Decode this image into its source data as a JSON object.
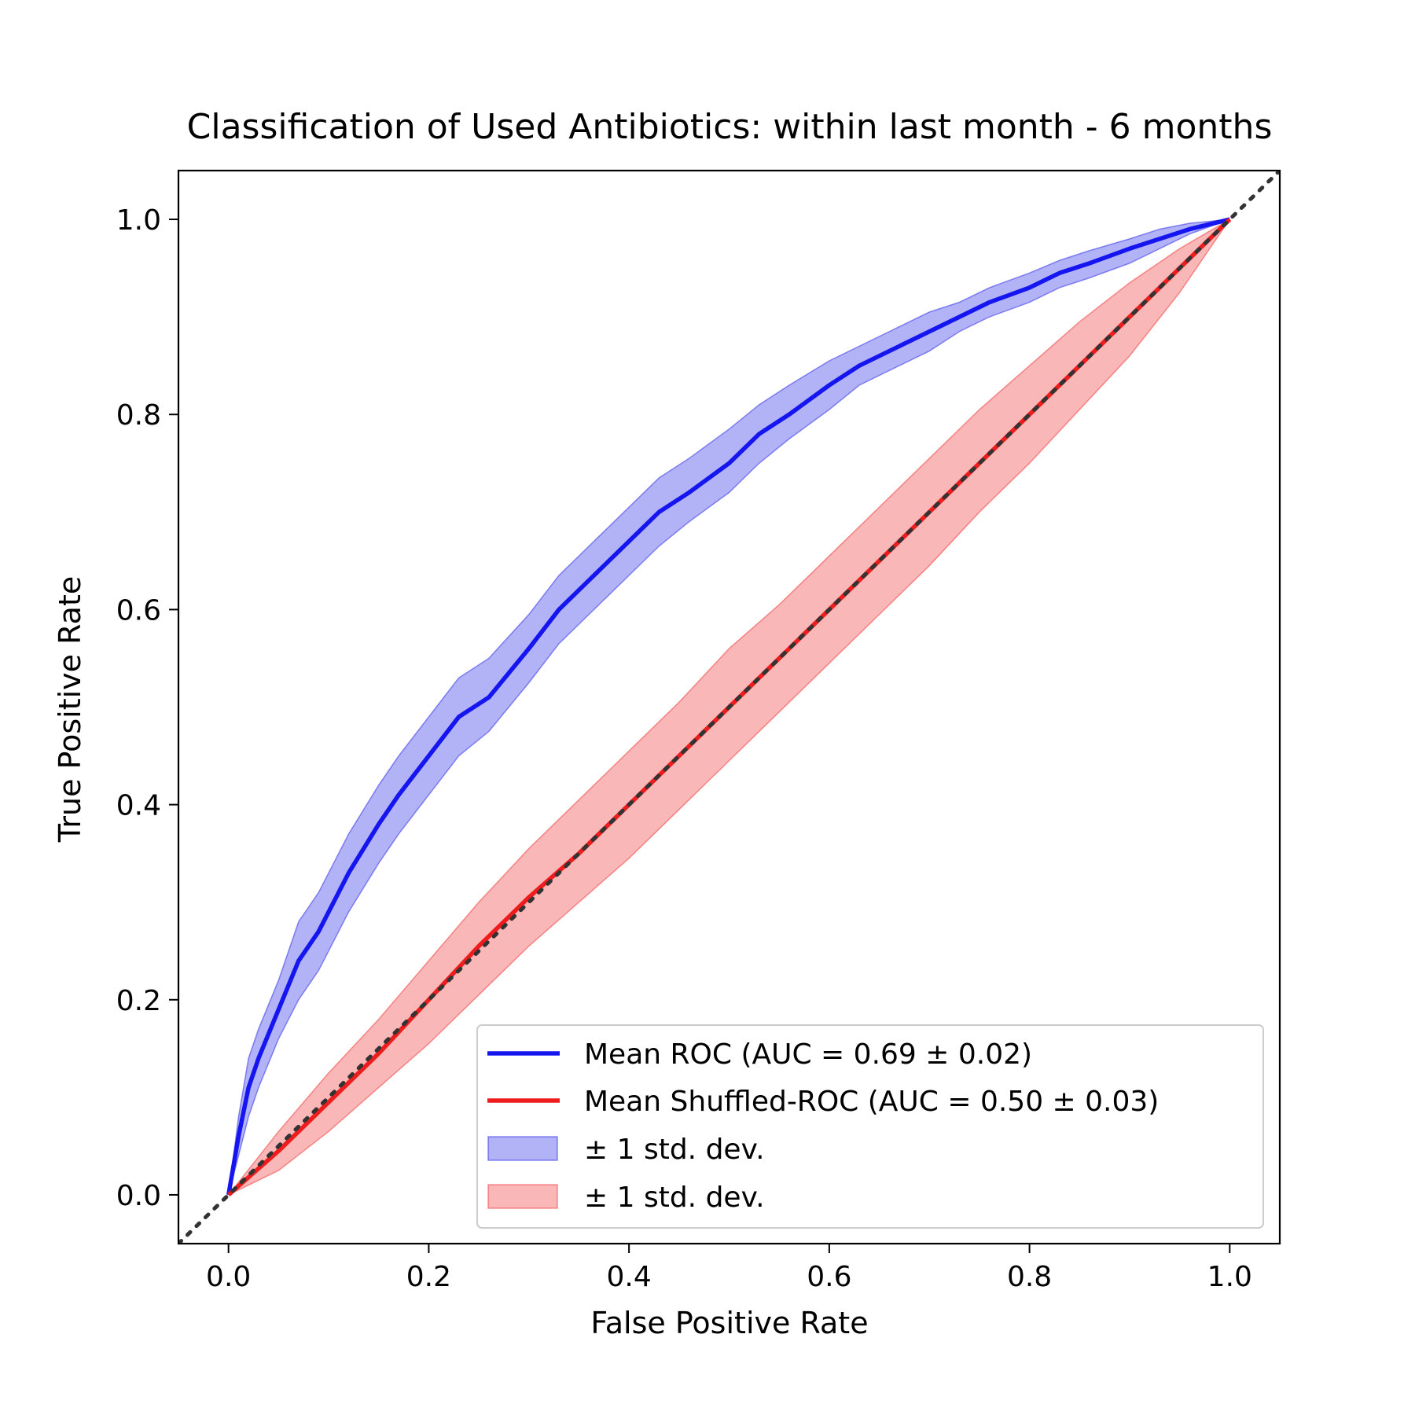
{
  "chart_data": {
    "type": "line",
    "title": "Classification of Used Antibiotics: within last month - 6 months",
    "xlabel": "False Positive Rate",
    "ylabel": "True Positive Rate",
    "xlim": [
      -0.05,
      1.05
    ],
    "ylim": [
      -0.05,
      1.05
    ],
    "xticks": [
      "0.0",
      "0.2",
      "0.4",
      "0.6",
      "0.8",
      "1.0"
    ],
    "yticks": [
      "0.0",
      "0.2",
      "0.4",
      "0.6",
      "0.8",
      "1.0"
    ],
    "grid": false,
    "legend_position": "lower-right",
    "diagonal": {
      "x": [
        -0.05,
        1.05
      ],
      "y": [
        -0.05,
        1.05
      ],
      "color": "#333333",
      "style": "dotted"
    },
    "series": [
      {
        "name": "Mean ROC (AUC = 0.69 ± 0.02)",
        "color": "#1515f0",
        "x": [
          0,
          0.01,
          0.02,
          0.03,
          0.05,
          0.07,
          0.09,
          0.12,
          0.15,
          0.17,
          0.2,
          0.23,
          0.26,
          0.3,
          0.33,
          0.36,
          0.4,
          0.43,
          0.46,
          0.5,
          0.53,
          0.56,
          0.6,
          0.63,
          0.66,
          0.7,
          0.73,
          0.76,
          0.8,
          0.83,
          0.86,
          0.9,
          0.93,
          0.96,
          1.0
        ],
        "y": [
          0,
          0.06,
          0.11,
          0.14,
          0.19,
          0.24,
          0.27,
          0.33,
          0.38,
          0.41,
          0.45,
          0.49,
          0.51,
          0.56,
          0.6,
          0.63,
          0.67,
          0.7,
          0.72,
          0.75,
          0.78,
          0.8,
          0.83,
          0.85,
          0.865,
          0.885,
          0.9,
          0.915,
          0.93,
          0.945,
          0.955,
          0.97,
          0.98,
          0.99,
          1.0
        ]
      },
      {
        "name": "Mean Shuffled-ROC (AUC = 0.50 ± 0.03)",
        "color": "#ee1c1c",
        "x": [
          0,
          0.05,
          0.1,
          0.15,
          0.2,
          0.25,
          0.3,
          0.35,
          0.4,
          0.45,
          0.5,
          0.55,
          0.6,
          0.65,
          0.7,
          0.75,
          0.8,
          0.85,
          0.9,
          0.95,
          1.0
        ],
        "y": [
          0,
          0.045,
          0.095,
          0.145,
          0.2,
          0.255,
          0.305,
          0.35,
          0.4,
          0.45,
          0.5,
          0.55,
          0.6,
          0.65,
          0.7,
          0.75,
          0.8,
          0.85,
          0.9,
          0.95,
          1.0
        ]
      }
    ],
    "bands": [
      {
        "name": "± 1 std. dev.",
        "color": "#2323e8",
        "opacity": 0.35,
        "x": [
          0,
          0.01,
          0.02,
          0.03,
          0.05,
          0.07,
          0.09,
          0.12,
          0.15,
          0.17,
          0.2,
          0.23,
          0.26,
          0.3,
          0.33,
          0.36,
          0.4,
          0.43,
          0.46,
          0.5,
          0.53,
          0.56,
          0.6,
          0.63,
          0.66,
          0.7,
          0.73,
          0.76,
          0.8,
          0.83,
          0.86,
          0.9,
          0.93,
          0.96,
          1.0
        ],
        "lower": [
          0,
          0.04,
          0.08,
          0.11,
          0.16,
          0.2,
          0.23,
          0.29,
          0.34,
          0.37,
          0.41,
          0.45,
          0.475,
          0.525,
          0.565,
          0.595,
          0.635,
          0.665,
          0.69,
          0.72,
          0.75,
          0.775,
          0.805,
          0.83,
          0.845,
          0.865,
          0.885,
          0.9,
          0.915,
          0.93,
          0.94,
          0.955,
          0.97,
          0.985,
          1.0
        ],
        "upper": [
          0,
          0.08,
          0.14,
          0.17,
          0.22,
          0.28,
          0.31,
          0.37,
          0.42,
          0.45,
          0.49,
          0.53,
          0.55,
          0.595,
          0.635,
          0.665,
          0.705,
          0.735,
          0.755,
          0.785,
          0.81,
          0.83,
          0.855,
          0.87,
          0.885,
          0.905,
          0.915,
          0.93,
          0.945,
          0.958,
          0.968,
          0.98,
          0.99,
          0.996,
          1.0
        ]
      },
      {
        "name": "± 1 std. dev.",
        "color": "#f03030",
        "opacity": 0.35,
        "x": [
          0,
          0.05,
          0.1,
          0.15,
          0.2,
          0.25,
          0.3,
          0.35,
          0.4,
          0.45,
          0.5,
          0.55,
          0.6,
          0.65,
          0.7,
          0.75,
          0.8,
          0.85,
          0.9,
          0.95,
          1.0
        ],
        "lower": [
          0,
          0.025,
          0.065,
          0.11,
          0.155,
          0.205,
          0.255,
          0.3,
          0.345,
          0.395,
          0.445,
          0.495,
          0.545,
          0.595,
          0.645,
          0.7,
          0.75,
          0.805,
          0.86,
          0.925,
          1.0
        ],
        "upper": [
          0,
          0.065,
          0.125,
          0.18,
          0.24,
          0.3,
          0.355,
          0.405,
          0.455,
          0.505,
          0.56,
          0.605,
          0.655,
          0.705,
          0.755,
          0.805,
          0.85,
          0.895,
          0.935,
          0.97,
          1.0
        ]
      }
    ]
  }
}
